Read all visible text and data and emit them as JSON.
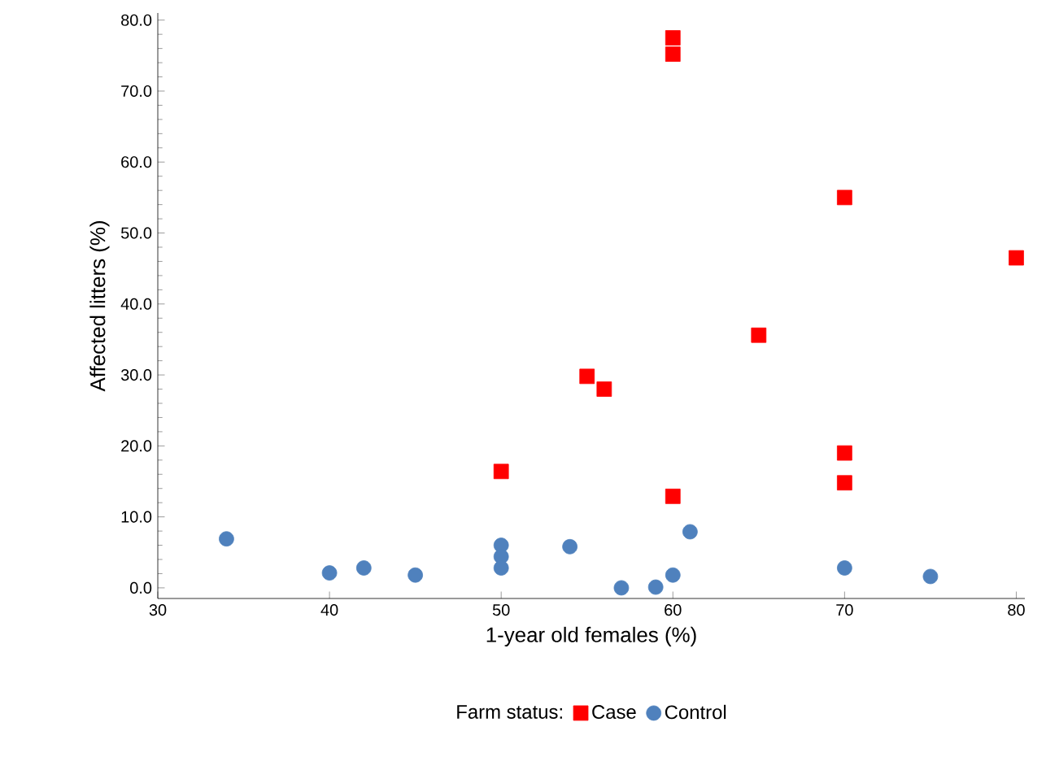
{
  "chart_data": {
    "type": "scatter",
    "xlabel": "1-year old females (%)",
    "ylabel": "Affected litters (%)",
    "legend_title": "Farm status:",
    "legend": "bottom",
    "xlim": [
      30,
      80.5
    ],
    "xticks": [
      30,
      40,
      50,
      60,
      70,
      80
    ],
    "ylim": [
      -1.5,
      81
    ],
    "yticks": [
      {
        "value": 0,
        "label": "0.0"
      },
      {
        "value": 10,
        "label": "10.0"
      },
      {
        "value": 20,
        "label": "20.0"
      },
      {
        "value": 30,
        "label": "30.0"
      },
      {
        "value": 40,
        "label": "40.0"
      },
      {
        "value": 50,
        "label": "50.0"
      },
      {
        "value": 60,
        "label": "60.0"
      },
      {
        "value": 70,
        "label": "70.0"
      },
      {
        "value": 80,
        "label": "80.0"
      }
    ],
    "series": [
      {
        "name": "Case",
        "color": "#ff0000",
        "marker": "square",
        "x": [
          60,
          60,
          70,
          80,
          65,
          55,
          56,
          70,
          50,
          70,
          60
        ],
        "values": [
          77.5,
          75.2,
          55.0,
          46.5,
          35.6,
          29.8,
          28.0,
          19.0,
          16.4,
          14.8,
          12.9
        ]
      },
      {
        "name": "Control",
        "color": "#4f81bd",
        "marker": "circle",
        "x": [
          34,
          40,
          42,
          45,
          50,
          50,
          50,
          54,
          57,
          59,
          60,
          61,
          70,
          75
        ],
        "values": [
          6.9,
          2.1,
          2.8,
          1.8,
          6.0,
          4.4,
          2.8,
          5.8,
          0,
          0.1,
          1.8,
          7.9,
          2.8,
          1.6
        ]
      }
    ]
  }
}
